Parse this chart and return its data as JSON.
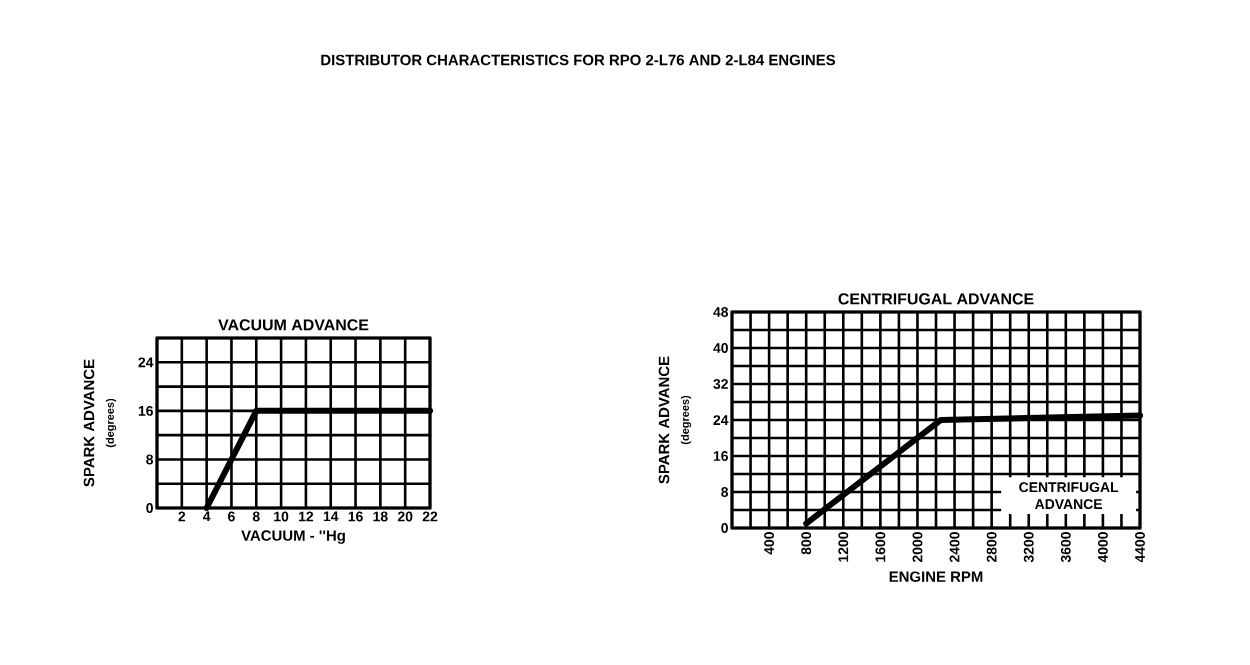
{
  "chart_data": [
    {
      "type": "line",
      "title": "VACUUM ADVANCE",
      "xlabel": "VACUUM - ''Hg",
      "ylabel": "SPARK ADVANCE",
      "annotations": [
        "DISTRIBUTOR CHARACTERISTICS FOR RPO 2-L76 AND 2-L84 ENGINES",
        "(degrees)"
      ],
      "series": [
        {
          "color": "#000000",
          "x": [
            4,
            8,
            22
          ],
          "values": [
            0,
            16,
            16
          ]
        }
      ],
      "xlim": [
        0,
        22
      ],
      "ylim": [
        0,
        28
      ],
      "xticks": [
        {
          "value": 0,
          "label": null
        },
        2,
        4,
        6,
        8,
        10,
        12,
        14,
        16,
        18,
        20,
        22
      ],
      "yticks": [
        0,
        {
          "value": 4,
          "label": null
        },
        8,
        {
          "value": 12,
          "label": null
        },
        16,
        {
          "value": 20,
          "label": null
        },
        24,
        {
          "value": 28,
          "label": null
        }
      ],
      "grid": true
    },
    {
      "type": "line",
      "title": "CENTRIFUGAL ADVANCE",
      "xlabel": "ENGINE RPM",
      "ylabel": "SPARK ADVANCE",
      "annotations": [
        "(degrees)",
        "CENTRIFUGAL ADVANCE"
      ],
      "series": [
        {
          "color": "#000000",
          "x": [
            800,
            2250,
            4400
          ],
          "values": [
            1,
            24,
            25
          ]
        }
      ],
      "xlim": [
        0,
        4400
      ],
      "ylim": [
        0,
        48
      ],
      "xticks": [
        {
          "value": 0,
          "label": null
        },
        {
          "value": 200,
          "label": null
        },
        400,
        {
          "value": 600,
          "label": null
        },
        800,
        {
          "value": 1000,
          "label": null
        },
        1200,
        {
          "value": 1400,
          "label": null
        },
        1600,
        {
          "value": 1800,
          "label": null
        },
        2000,
        {
          "value": 2200,
          "label": null
        },
        2400,
        {
          "value": 2600,
          "label": null
        },
        2800,
        {
          "value": 3000,
          "label": null
        },
        3200,
        {
          "value": 3400,
          "label": null
        },
        3600,
        {
          "value": 3800,
          "label": null
        },
        4000,
        {
          "value": 4200,
          "label": null
        },
        4400
      ],
      "yticks": [
        0,
        {
          "value": 4,
          "label": null
        },
        8,
        {
          "value": 12,
          "label": null
        },
        16,
        {
          "value": 20,
          "label": null
        },
        24,
        {
          "value": 28,
          "label": null
        },
        32,
        {
          "value": 36,
          "label": null
        },
        40,
        {
          "value": 44,
          "label": null
        },
        48
      ],
      "grid": true
    }
  ]
}
